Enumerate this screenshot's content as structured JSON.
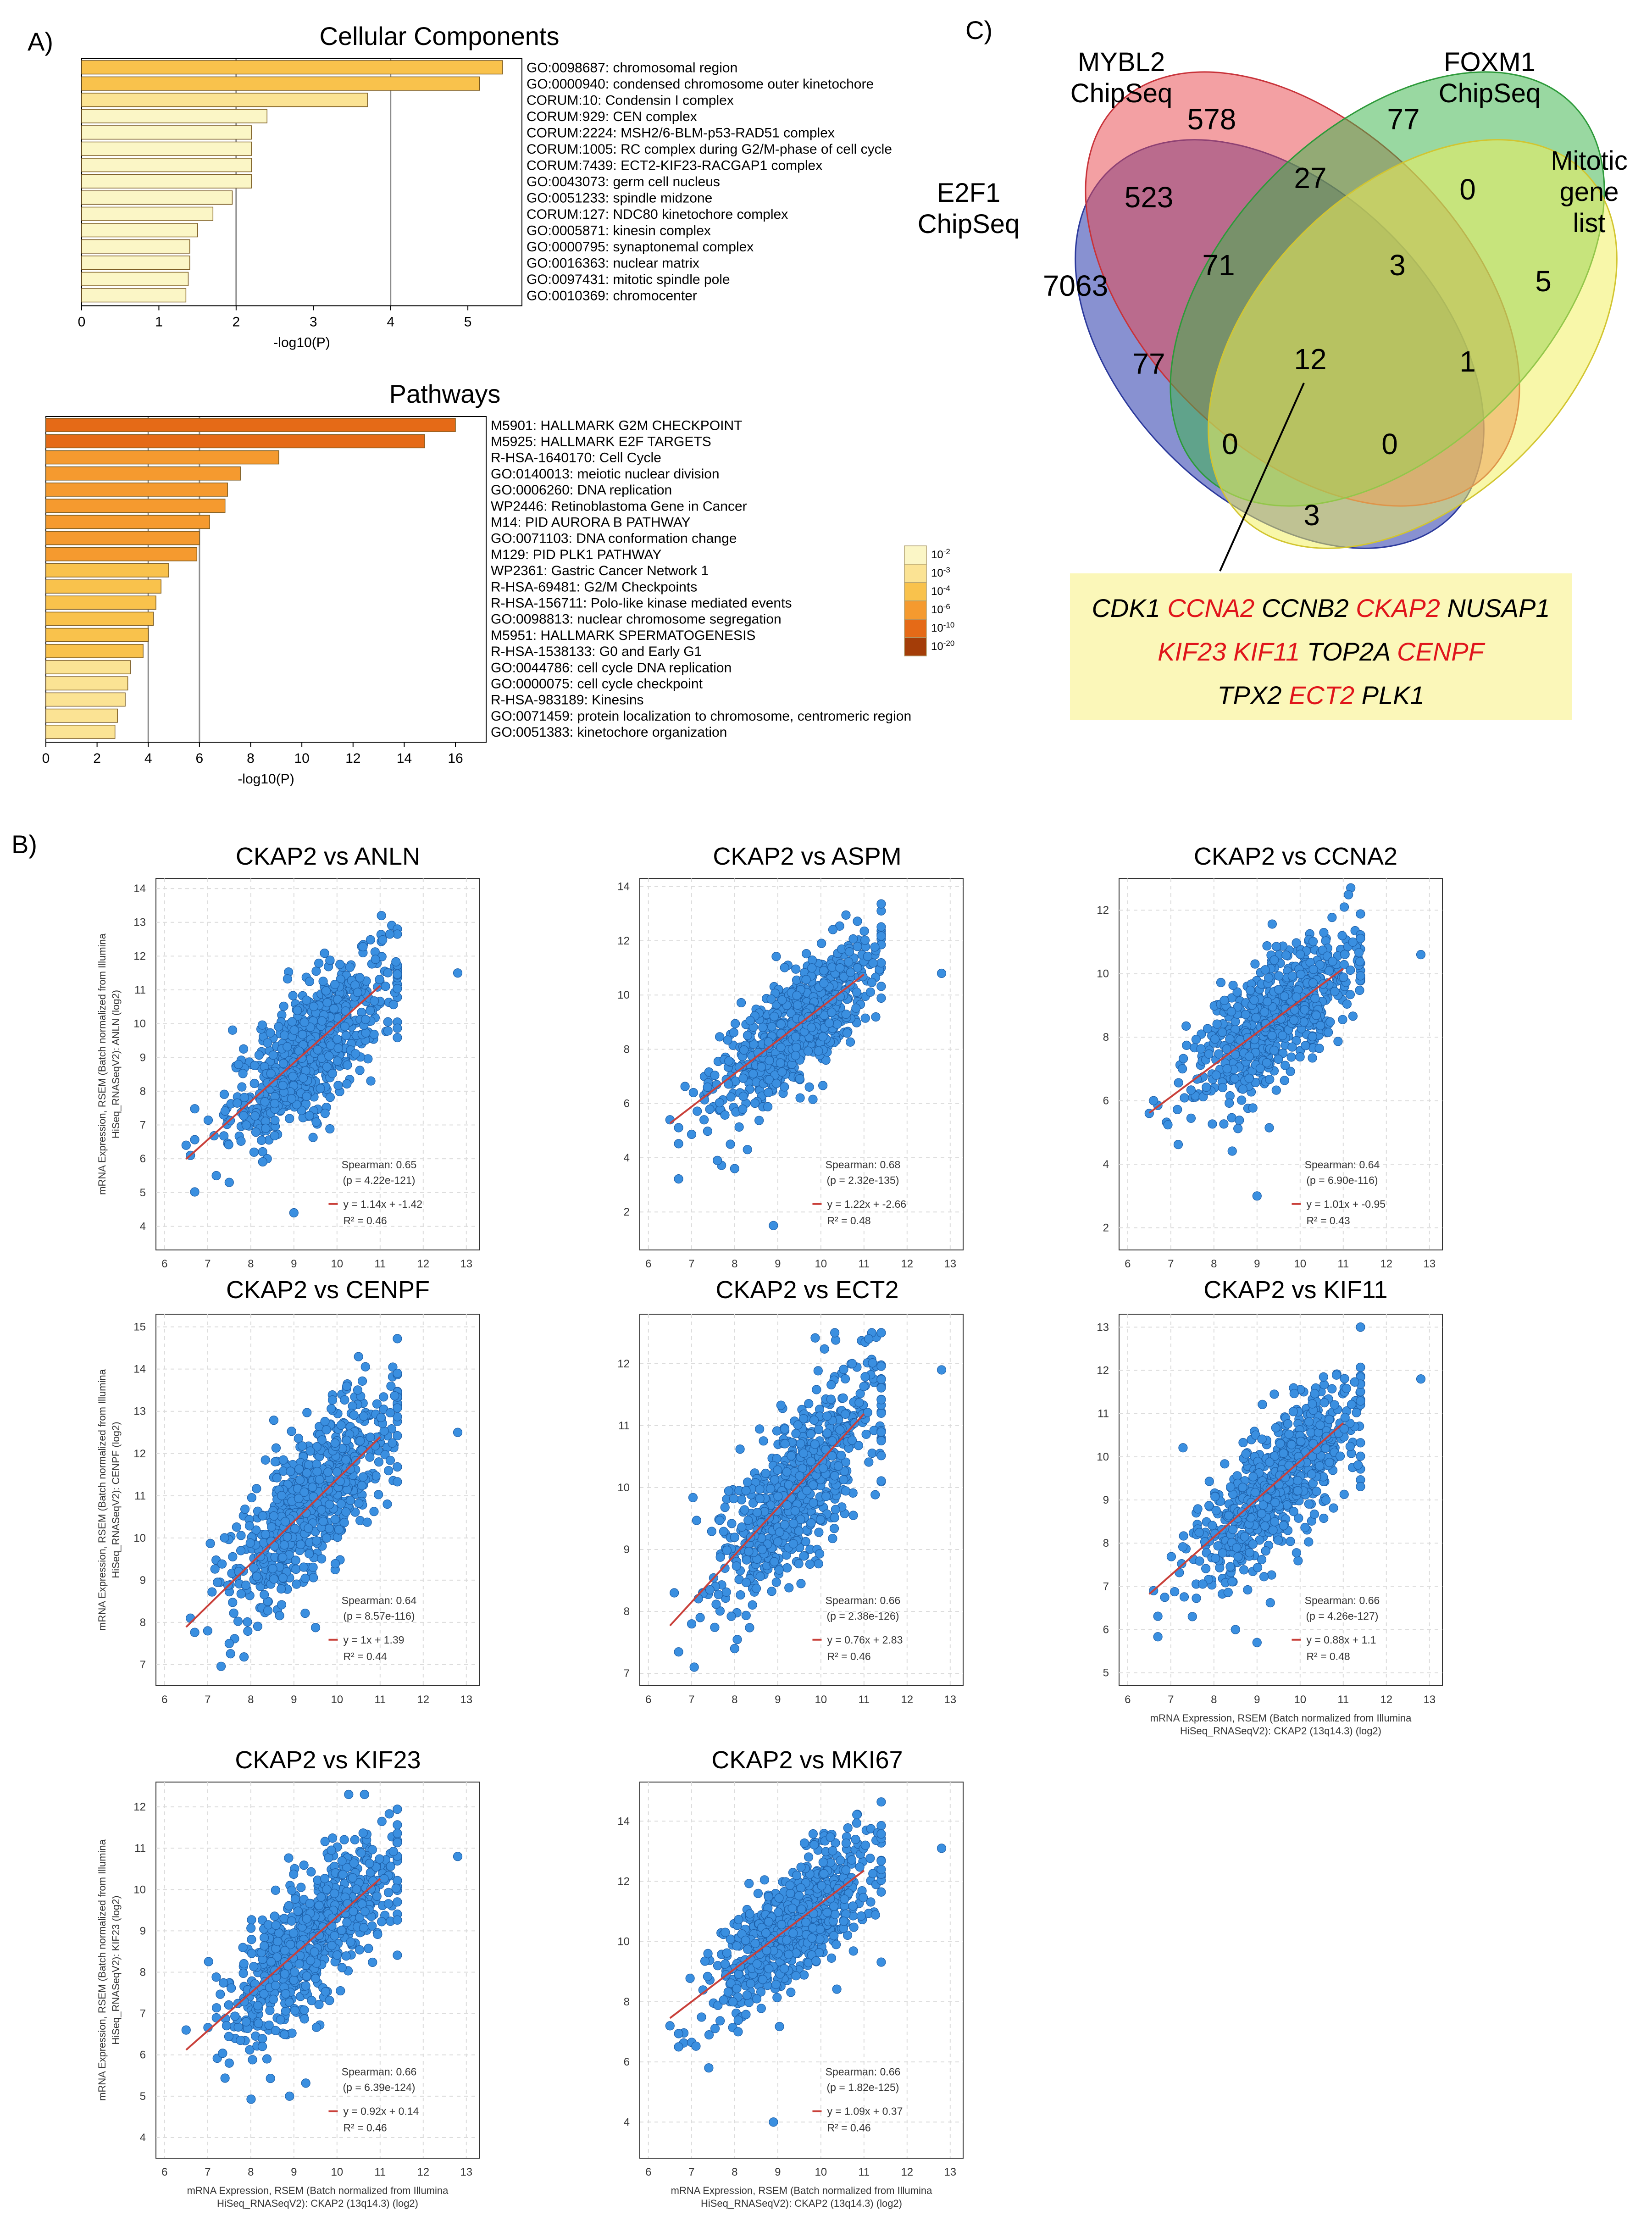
{
  "panel_labels": {
    "a": "A)",
    "b": "B)",
    "c": "C)"
  },
  "legend_scale": [
    "10-2",
    "10-3",
    "10-4",
    "10-6",
    "10-10",
    "10-20"
  ],
  "legend_colors": [
    "#fbf6c6",
    "#fbe394",
    "#f9c24c",
    "#f59a2f",
    "#e56a17",
    "#a43d08"
  ],
  "chart_data": [
    {
      "type": "bar",
      "orientation": "horizontal",
      "title": "Cellular Components",
      "xlabel": "-log10(P)",
      "xlim": [
        0,
        5.7
      ],
      "xticks": [
        0,
        1,
        2,
        3,
        4,
        5
      ],
      "grid_lines": [
        2,
        4
      ],
      "categories": [
        "GO:0098687: chromosomal region",
        "GO:0000940: condensed chromosome outer kinetochore",
        "CORUM:10: Condensin I complex",
        "CORUM:929: CEN complex",
        "CORUM:2224: MSH2/6-BLM-p53-RAD51 complex",
        "CORUM:1005: RC complex during G2/M-phase of cell cycle",
        "CORUM:7439: ECT2-KIF23-RACGAP1 complex",
        "GO:0043073: germ cell nucleus",
        "GO:0051233: spindle midzone",
        "CORUM:127: NDC80 kinetochore complex",
        "GO:0005871: kinesin complex",
        "GO:0000795: synaptonemal complex",
        "GO:0016363: nuclear matrix",
        "GO:0097431: mitotic spindle pole",
        "GO:0010369: chromocenter"
      ],
      "values": [
        5.45,
        5.15,
        3.7,
        2.4,
        2.2,
        2.2,
        2.2,
        2.2,
        1.95,
        1.7,
        1.5,
        1.4,
        1.4,
        1.38,
        1.35
      ],
      "colors": [
        "#f9c24c",
        "#f9c24c",
        "#fbe394",
        "#fbf6c6",
        "#fbf6c6",
        "#fbf6c6",
        "#fbf6c6",
        "#fbf6c6",
        "#fbf6c6",
        "#fbf6c6",
        "#fbf6c6",
        "#fbf6c6",
        "#fbf6c6",
        "#fbf6c6",
        "#fbf6c6"
      ]
    },
    {
      "type": "bar",
      "orientation": "horizontal",
      "title": "Pathways",
      "xlabel": "-log10(P)",
      "xlim": [
        0,
        17.2
      ],
      "xticks": [
        0,
        2,
        4,
        6,
        8,
        10,
        12,
        14,
        16
      ],
      "grid_lines": [
        4,
        6
      ],
      "categories": [
        "M5901: HALLMARK G2M CHECKPOINT",
        "M5925: HALLMARK E2F TARGETS",
        "R-HSA-1640170: Cell Cycle",
        "GO:0140013: meiotic nuclear division",
        "GO:0006260: DNA replication",
        "WP2446: Retinoblastoma Gene in Cancer",
        "M14: PID AURORA B PATHWAY",
        "GO:0071103: DNA conformation change",
        "M129: PID PLK1 PATHWAY",
        "WP2361: Gastric Cancer Network 1",
        "R-HSA-69481: G2/M Checkpoints",
        "R-HSA-156711: Polo-like kinase mediated events",
        "GO:0098813: nuclear chromosome segregation",
        "M5951: HALLMARK SPERMATOGENESIS",
        "R-HSA-1538133: G0 and Early G1",
        "GO:0044786: cell cycle DNA replication",
        "GO:0000075: cell cycle checkpoint",
        "R-HSA-983189: Kinesins",
        "GO:0071459: protein localization to chromosome, centromeric region",
        "GO:0051383: kinetochore organization"
      ],
      "values": [
        16.0,
        14.8,
        9.1,
        7.6,
        7.1,
        7.0,
        6.4,
        6.0,
        5.9,
        4.8,
        4.5,
        4.3,
        4.2,
        4.0,
        3.8,
        3.3,
        3.2,
        3.1,
        2.8,
        2.7
      ],
      "colors": [
        "#e56a17",
        "#e56a17",
        "#f59a2f",
        "#f59a2f",
        "#f59a2f",
        "#f59a2f",
        "#f59a2f",
        "#f59a2f",
        "#f59a2f",
        "#f9c24c",
        "#f9c24c",
        "#f9c24c",
        "#f9c24c",
        "#f9c24c",
        "#f9c24c",
        "#fbe394",
        "#fbe394",
        "#fbe394",
        "#fbe394",
        "#fbe394"
      ]
    },
    {
      "type": "venn",
      "sets": [
        {
          "label": "E2F1\nChipSeq",
          "color": "#3f4db5"
        },
        {
          "label": "MYBL2\nChipSeq",
          "color": "#e8484e"
        },
        {
          "label": "FOXM1\nChipSeq",
          "color": "#3cb44a"
        },
        {
          "label": "Mitotic\ngene\nlist",
          "color": "#f2ef5a"
        }
      ],
      "counts": {
        "E2F1 only": 7063,
        "MYBL2 only": 578,
        "FOXM1 only": 77,
        "Mitotic only": 5,
        "E2F1&MYBL2": 523,
        "MYBL2&FOXM1": 27,
        "FOXM1&Mitotic": 0,
        "E2F1&FOXM1": 77,
        "E2F1&Mitotic": 3,
        "MYBL2&Mitotic": 1,
        "E2F1&MYBL2&FOXM1": 71,
        "MYBL2&FOXM1&Mitotic": 3,
        "E2F1&FOXM1&Mitotic": 0,
        "E2F1&MYBL2&Mitotic": 0,
        "E2F1&MYBL2&FOXM1&Mitotic": 12
      },
      "genes": [
        [
          {
            "t": "CDK1",
            "red": false
          },
          {
            "t": "CCNA2",
            "red": true
          },
          {
            "t": "CCNB2",
            "red": false
          },
          {
            "t": "CKAP2",
            "red": true
          },
          {
            "t": "NUSAP1",
            "red": false
          }
        ],
        [
          {
            "t": "KIF23",
            "red": true
          },
          {
            "t": "KIF11",
            "red": true
          },
          {
            "t": "TOP2A",
            "red": false
          },
          {
            "t": "CENPF",
            "red": true
          }
        ],
        [
          {
            "t": "TPX2",
            "red": false
          },
          {
            "t": "ECT2",
            "red": true
          },
          {
            "t": "PLK1",
            "red": false
          }
        ]
      ]
    },
    {
      "type": "scatter",
      "title": "CKAP2 vs ANLN",
      "ylabel": "mRNA Expression, RSEM (Batch normalized from Illumina\nHiSeq_RNASeqV2): ANLN (log2)",
      "xlabel": "",
      "xlim": [
        5.8,
        13.3
      ],
      "ylim": [
        3.3,
        14.3
      ],
      "xticks": [
        6,
        7,
        8,
        9,
        10,
        11,
        12,
        13
      ],
      "yticks": [
        4,
        5,
        6,
        7,
        8,
        9,
        10,
        11,
        12,
        13,
        14
      ],
      "slope": 1.14,
      "intercept": -1.42,
      "noise": 0.95,
      "n": 700,
      "extra_points": [
        [
          6.6,
          6.1
        ],
        [
          6.5,
          6.4
        ],
        [
          12.8,
          11.5
        ],
        [
          9.0,
          4.4
        ],
        [
          7.2,
          5.5
        ],
        [
          7.5,
          5.3
        ]
      ],
      "stats": {
        "spearman": "Spearman: 0.65",
        "p": "(p = 4.22e-121)",
        "fit": "y = 1.14x + -1.42",
        "r2": "R² = 0.46"
      }
    },
    {
      "type": "scatter",
      "title": "CKAP2 vs ASPM",
      "ylabel": "",
      "xlabel": "",
      "xlim": [
        5.8,
        13.3
      ],
      "ylim": [
        0.6,
        14.3
      ],
      "xticks": [
        6,
        7,
        8,
        9,
        10,
        11,
        12,
        13
      ],
      "yticks": [
        2,
        4,
        6,
        8,
        10,
        12,
        14
      ],
      "slope": 1.22,
      "intercept": -2.66,
      "noise": 1.0,
      "n": 700,
      "extra_points": [
        [
          6.5,
          5.4
        ],
        [
          12.8,
          10.8
        ],
        [
          8.9,
          1.5
        ],
        [
          7.6,
          3.9
        ],
        [
          8.0,
          3.6
        ]
      ],
      "stats": {
        "spearman": "Spearman: 0.68",
        "p": "(p = 2.32e-135)",
        "fit": "y = 1.22x + -2.66",
        "r2": "R² = 0.48"
      }
    },
    {
      "type": "scatter",
      "title": "CKAP2 vs CCNA2",
      "ylabel": "",
      "xlabel": "",
      "xlim": [
        5.8,
        13.3
      ],
      "ylim": [
        1.3,
        13.0
      ],
      "xticks": [
        6,
        7,
        8,
        9,
        10,
        11,
        12,
        13
      ],
      "yticks": [
        2,
        4,
        6,
        8,
        10,
        12
      ],
      "slope": 1.01,
      "intercept": -0.95,
      "noise": 0.95,
      "n": 700,
      "extra_points": [
        [
          6.5,
          5.6
        ],
        [
          12.8,
          10.6
        ],
        [
          9.0,
          3.0
        ],
        [
          6.6,
          6.0
        ]
      ],
      "stats": {
        "spearman": "Spearman: 0.64",
        "p": "(p = 6.90e-116)",
        "fit": "y = 1.01x + -0.95",
        "r2": "R² = 0.43"
      }
    },
    {
      "type": "scatter",
      "title": "CKAP2 vs CENPF",
      "ylabel": "mRNA Expression, RSEM (Batch normalized from Illumina\nHiSeq_RNASeqV2): CENPF (log2)",
      "xlabel": "",
      "xlim": [
        5.8,
        13.3
      ],
      "ylim": [
        6.5,
        15.3
      ],
      "xticks": [
        6,
        7,
        8,
        9,
        10,
        11,
        12,
        13
      ],
      "yticks": [
        7,
        8,
        9,
        10,
        11,
        12,
        13,
        14,
        15
      ],
      "slope": 1.0,
      "intercept": 1.39,
      "noise": 0.9,
      "n": 700,
      "extra_points": [
        [
          6.6,
          8.1
        ],
        [
          12.8,
          12.5
        ],
        [
          7.0,
          7.8
        ],
        [
          7.5,
          7.5
        ]
      ],
      "stats": {
        "spearman": "Spearman: 0.64",
        "p": "(p = 8.57e-116)",
        "fit": "y = 1x + 1.39",
        "r2": "R² = 0.44"
      }
    },
    {
      "type": "scatter",
      "title": "CKAP2 vs ECT2",
      "ylabel": "",
      "xlabel": "",
      "xlim": [
        5.8,
        13.3
      ],
      "ylim": [
        6.8,
        12.8
      ],
      "xticks": [
        6,
        7,
        8,
        9,
        10,
        11,
        12,
        13
      ],
      "yticks": [
        7,
        8,
        9,
        10,
        11,
        12
      ],
      "slope": 0.76,
      "intercept": 2.83,
      "noise": 0.65,
      "n": 700,
      "extra_points": [
        [
          6.6,
          8.3
        ],
        [
          12.8,
          11.9
        ],
        [
          7.2,
          7.9
        ],
        [
          8.0,
          7.4
        ]
      ],
      "stats": {
        "spearman": "Spearman: 0.66",
        "p": "(p = 2.38e-126)",
        "fit": "y = 0.76x + 2.83",
        "r2": "R² = 0.46"
      }
    },
    {
      "type": "scatter",
      "title": "CKAP2 vs KIF11",
      "ylabel": "",
      "xlabel": "mRNA Expression, RSEM (Batch normalized from Illumina\nHiSeq_RNASeqV2): CKAP2 (13q14.3) (log2)",
      "xlim": [
        5.8,
        13.3
      ],
      "ylim": [
        4.7,
        13.3
      ],
      "xticks": [
        6,
        7,
        8,
        9,
        10,
        11,
        12,
        13
      ],
      "yticks": [
        5,
        6,
        7,
        8,
        9,
        10,
        11,
        12,
        13
      ],
      "slope": 0.88,
      "intercept": 1.1,
      "noise": 0.75,
      "n": 700,
      "extra_points": [
        [
          6.6,
          6.9
        ],
        [
          12.8,
          11.8
        ],
        [
          8.5,
          6.0
        ],
        [
          9.0,
          5.7
        ],
        [
          7.5,
          6.3
        ]
      ],
      "stats": {
        "spearman": "Spearman: 0.66",
        "p": "(p = 4.26e-127)",
        "fit": "y = 0.88x + 1.1",
        "r2": "R² = 0.48"
      }
    },
    {
      "type": "scatter",
      "title": "CKAP2 vs KIF23",
      "ylabel": "mRNA Expression, RSEM (Batch normalized from Illumina\nHiSeq_RNASeqV2): KIF23 (log2)",
      "xlabel": "mRNA Expression, RSEM (Batch normalized from Illumina\nHiSeq_RNASeqV2): CKAP2 (13q14.3) (log2)",
      "xlim": [
        5.8,
        13.3
      ],
      "ylim": [
        3.5,
        12.6
      ],
      "xticks": [
        6,
        7,
        8,
        9,
        10,
        11,
        12,
        13
      ],
      "yticks": [
        4,
        5,
        6,
        7,
        8,
        9,
        10,
        11,
        12
      ],
      "slope": 0.92,
      "intercept": 0.14,
      "noise": 0.8,
      "n": 700,
      "extra_points": [
        [
          6.5,
          6.6
        ],
        [
          12.8,
          10.8
        ],
        [
          8.9,
          5.0
        ],
        [
          7.5,
          5.8
        ]
      ],
      "stats": {
        "spearman": "Spearman: 0.66",
        "p": "(p = 6.39e-124)",
        "fit": "y = 0.92x + 0.14",
        "r2": "R² = 0.46"
      }
    },
    {
      "type": "scatter",
      "title": "CKAP2 vs MKI67",
      "ylabel": "",
      "xlabel": "mRNA Expression, RSEM (Batch normalized from Illumina\nHiSeq_RNASeqV2): CKAP2 (13q14.3) (log2)",
      "xlim": [
        5.8,
        13.3
      ],
      "ylim": [
        2.8,
        15.3
      ],
      "xticks": [
        6,
        7,
        8,
        9,
        10,
        11,
        12,
        13
      ],
      "yticks": [
        4,
        6,
        8,
        10,
        12,
        14
      ],
      "slope": 1.09,
      "intercept": 0.37,
      "noise": 1.0,
      "n": 700,
      "extra_points": [
        [
          6.5,
          7.2
        ],
        [
          12.8,
          13.1
        ],
        [
          8.9,
          4.0
        ],
        [
          7.4,
          5.8
        ]
      ],
      "stats": {
        "spearman": "Spearman: 0.66",
        "p": "(p = 1.82e-125)",
        "fit": "y = 1.09x + 0.37",
        "r2": "R² = 0.46"
      }
    }
  ]
}
